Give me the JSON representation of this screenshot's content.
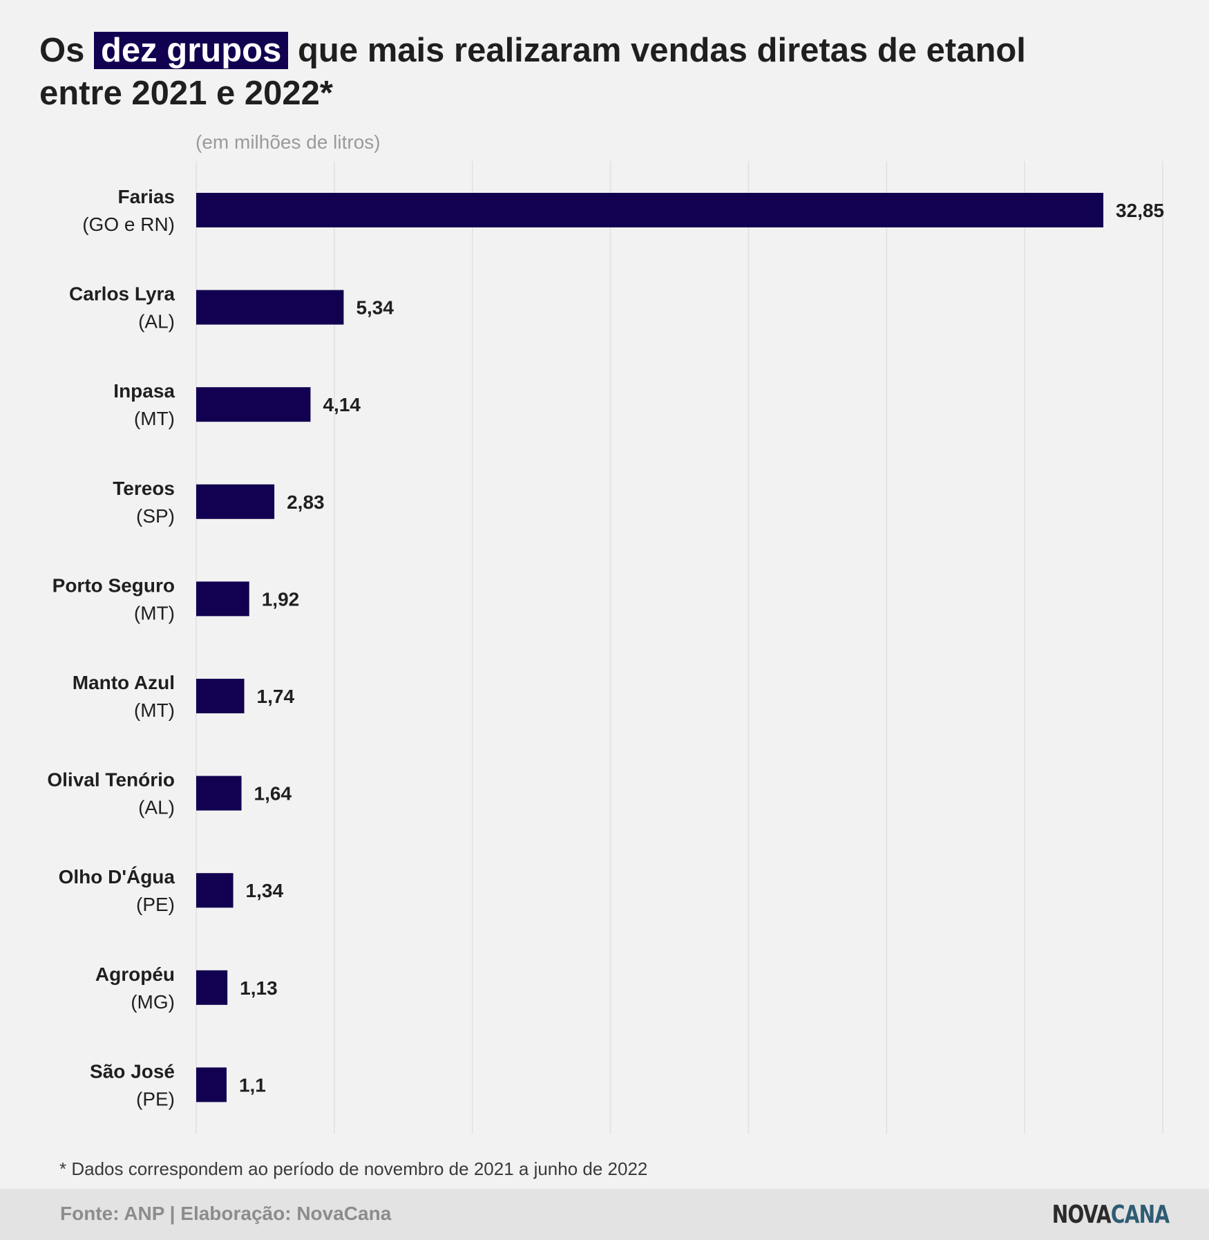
{
  "title": {
    "before": "Os",
    "highlight": "dez grupos",
    "after_line1": "que mais realizaram vendas diretas de etanol",
    "line2": "entre 2021 e 2022*"
  },
  "subtitle": "(em milhões de litros)",
  "footnote": "* Dados correspondem ao período de novembro de 2021 a junho de 2022",
  "footer": {
    "source": "Fonte: ANP | Elaboração: NovaCana",
    "logo_part1": "NOVA",
    "logo_part2": "CANA"
  },
  "colors": {
    "bar": "#120050",
    "grid": "#e0e0e0",
    "logo_accent": "#2e5c73"
  },
  "chart_data": {
    "type": "bar",
    "orientation": "horizontal",
    "categories": [
      "Farias",
      "Carlos Lyra",
      "Inpasa",
      "Tereos",
      "Porto Seguro",
      "Manto Azul",
      "Olival Tenório",
      "Olho D'Água",
      "Agropéu",
      "São José"
    ],
    "category_regions": [
      "(GO e RN)",
      "(AL)",
      "(MT)",
      "(SP)",
      "(MT)",
      "(MT)",
      "(AL)",
      "(PE)",
      "(MG)",
      "(PE)"
    ],
    "values": [
      32.85,
      5.34,
      4.14,
      2.83,
      1.92,
      1.74,
      1.64,
      1.34,
      1.13,
      1.1
    ],
    "value_labels": [
      "32,85",
      "5,34",
      "4,14",
      "2,83",
      "1,92",
      "1,74",
      "1,64",
      "1,34",
      "1,13",
      "1,1"
    ],
    "xlim": [
      0,
      35
    ],
    "gridlines": [
      0,
      5,
      10,
      15,
      20,
      25,
      30,
      35
    ],
    "grid": true,
    "unit": "(em milhões de litros)"
  }
}
